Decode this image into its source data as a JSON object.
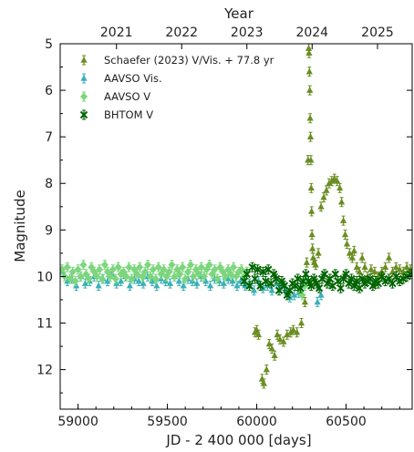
{
  "chart_data": {
    "type": "scatter",
    "xlabel": "JD - 2 400 000 [days]",
    "ylabel": "Magnitude",
    "top_xlabel": "Year",
    "xlim": [
      58900,
      60870
    ],
    "ylim": [
      12.85,
      5.0
    ],
    "y_inverted": true,
    "grid": false,
    "legend_position": "top-left",
    "x_ticks": [
      59000,
      59500,
      60000,
      60500
    ],
    "y_ticks": [
      5,
      6,
      7,
      8,
      9,
      10,
      11,
      12
    ],
    "top_ticks": [
      {
        "label": "2021",
        "x": 59215
      },
      {
        "label": "2022",
        "x": 59580
      },
      {
        "label": "2023",
        "x": 59945
      },
      {
        "label": "2024",
        "x": 60310
      },
      {
        "label": "2025",
        "x": 60676
      }
    ],
    "colors": {
      "schaefer": "#6b8e23",
      "aavso_vis": "#3cb0b8",
      "aavso_v": "#7dd67d",
      "bhtom": "#006400"
    },
    "series": [
      {
        "name": "Schaefer (2023) V/Vis. + 77.8 yr",
        "key": "schaefer",
        "marker": "triangle",
        "points": [
          [
            59990,
            11.2
          ],
          [
            60000,
            11.15
          ],
          [
            60010,
            11.25
          ],
          [
            60030,
            12.2
          ],
          [
            60040,
            12.3
          ],
          [
            60055,
            12.0
          ],
          [
            60070,
            11.45
          ],
          [
            60085,
            11.55
          ],
          [
            60100,
            11.7
          ],
          [
            60115,
            11.25
          ],
          [
            60130,
            11.35
          ],
          [
            60150,
            11.4
          ],
          [
            60170,
            11.25
          ],
          [
            60190,
            11.2
          ],
          [
            60205,
            11.15
          ],
          [
            60225,
            11.2
          ],
          [
            60250,
            11.0
          ],
          [
            60270,
            10.55
          ],
          [
            60280,
            9.7
          ],
          [
            60287,
            7.5
          ],
          [
            60291,
            5.1
          ],
          [
            60293,
            5.2
          ],
          [
            60295,
            5.6
          ],
          [
            60297,
            6.0
          ],
          [
            60299,
            6.6
          ],
          [
            60301,
            7.0
          ],
          [
            60303,
            7.5
          ],
          [
            60305,
            8.1
          ],
          [
            60307,
            8.6
          ],
          [
            60309,
            9.1
          ],
          [
            60312,
            9.4
          ],
          [
            60316,
            9.6
          ],
          [
            60322,
            9.7
          ],
          [
            60330,
            9.75
          ],
          [
            60345,
            9.5
          ],
          [
            60360,
            8.5
          ],
          [
            60375,
            8.3
          ],
          [
            60390,
            8.15
          ],
          [
            60405,
            8.0
          ],
          [
            60420,
            7.95
          ],
          [
            60435,
            7.9
          ],
          [
            60450,
            7.95
          ],
          [
            60465,
            8.1
          ],
          [
            60475,
            8.4
          ],
          [
            60485,
            8.8
          ],
          [
            60495,
            9.1
          ],
          [
            60505,
            9.3
          ],
          [
            60520,
            9.5
          ],
          [
            60535,
            9.6
          ],
          [
            60545,
            9.45
          ],
          [
            60560,
            9.8
          ],
          [
            60575,
            9.9
          ],
          [
            60590,
            9.6
          ],
          [
            60605,
            9.8
          ],
          [
            60620,
            10.0
          ],
          [
            60640,
            9.85
          ],
          [
            60660,
            9.9
          ],
          [
            60680,
            10.0
          ],
          [
            60700,
            9.9
          ],
          [
            60720,
            9.8
          ],
          [
            60740,
            9.6
          ],
          [
            60760,
            9.9
          ],
          [
            60780,
            9.8
          ],
          [
            60800,
            9.85
          ],
          [
            60820,
            9.9
          ],
          [
            60840,
            9.8
          ],
          [
            60860,
            9.85
          ]
        ]
      },
      {
        "name": "AAVSO Vis.",
        "key": "aavso_vis",
        "marker": "triangle",
        "points": [
          [
            58915,
            9.9
          ],
          [
            58940,
            10.1
          ],
          [
            58965,
            10.05
          ],
          [
            58990,
            10.2
          ],
          [
            59015,
            10.0
          ],
          [
            59040,
            10.15
          ],
          [
            59065,
            10.1
          ],
          [
            59090,
            10.0
          ],
          [
            59115,
            10.2
          ],
          [
            59140,
            10.05
          ],
          [
            59165,
            10.1
          ],
          [
            59190,
            9.95
          ],
          [
            59215,
            10.15
          ],
          [
            59240,
            10.1
          ],
          [
            59265,
            10.0
          ],
          [
            59290,
            10.2
          ],
          [
            59315,
            10.05
          ],
          [
            59340,
            10.1
          ],
          [
            59365,
            10.15
          ],
          [
            59390,
            10.0
          ],
          [
            59415,
            10.1
          ],
          [
            59440,
            10.2
          ],
          [
            59465,
            10.05
          ],
          [
            59490,
            10.1
          ],
          [
            59515,
            10.15
          ],
          [
            59540,
            10.0
          ],
          [
            59565,
            10.1
          ],
          [
            59590,
            10.2
          ],
          [
            59615,
            10.05
          ],
          [
            59640,
            10.1
          ],
          [
            59665,
            10.15
          ],
          [
            59690,
            10.0
          ],
          [
            59715,
            10.1
          ],
          [
            59740,
            10.2
          ],
          [
            59765,
            10.05
          ],
          [
            59790,
            10.1
          ],
          [
            59815,
            10.15
          ],
          [
            59840,
            10.05
          ],
          [
            59865,
            10.1
          ],
          [
            59890,
            10.2
          ],
          [
            59910,
            10.1
          ],
          [
            59935,
            10.2
          ],
          [
            59960,
            10.15
          ],
          [
            59985,
            10.3
          ],
          [
            60010,
            10.1
          ],
          [
            60035,
            10.25
          ],
          [
            60060,
            10.2
          ],
          [
            60085,
            10.3
          ],
          [
            60110,
            10.15
          ],
          [
            60135,
            10.2
          ],
          [
            60160,
            10.3
          ],
          [
            60185,
            10.45
          ],
          [
            60210,
            10.4
          ],
          [
            60235,
            10.35
          ],
          [
            60255,
            10.2
          ],
          [
            60270,
            10.1
          ],
          [
            60340,
            10.55
          ],
          [
            60360,
            10.4
          ]
        ]
      },
      {
        "name": "AAVSO V",
        "key": "aavso_v",
        "marker": "diamond",
        "points": [
          [
            58910,
            9.85
          ],
          [
            58925,
            10.0
          ],
          [
            58940,
            9.8
          ],
          [
            58955,
            10.05
          ],
          [
            58970,
            9.9
          ],
          [
            58985,
            10.1
          ],
          [
            59000,
            9.85
          ],
          [
            59015,
            10.0
          ],
          [
            59030,
            9.75
          ],
          [
            59045,
            9.95
          ],
          [
            59060,
            10.05
          ],
          [
            59075,
            9.8
          ],
          [
            59090,
            9.9
          ],
          [
            59105,
            10.0
          ],
          [
            59120,
            9.85
          ],
          [
            59135,
            10.05
          ],
          [
            59150,
            9.75
          ],
          [
            59165,
            9.9
          ],
          [
            59180,
            10.0
          ],
          [
            59195,
            9.85
          ],
          [
            59210,
            10.05
          ],
          [
            59225,
            9.8
          ],
          [
            59240,
            9.95
          ],
          [
            59255,
            9.9
          ],
          [
            59270,
            10.0
          ],
          [
            59285,
            9.8
          ],
          [
            59300,
            10.05
          ],
          [
            59315,
            9.85
          ],
          [
            59330,
            9.95
          ],
          [
            59345,
            9.8
          ],
          [
            59360,
            10.0
          ],
          [
            59375,
            9.9
          ],
          [
            59390,
            9.75
          ],
          [
            59405,
            10.0
          ],
          [
            59420,
            9.85
          ],
          [
            59435,
            10.05
          ],
          [
            59450,
            9.8
          ],
          [
            59465,
            9.95
          ],
          [
            59480,
            9.85
          ],
          [
            59495,
            10.0
          ],
          [
            59510,
            9.9
          ],
          [
            59525,
            9.75
          ],
          [
            59540,
            10.0
          ],
          [
            59555,
            9.85
          ],
          [
            59570,
            9.95
          ],
          [
            59585,
            9.8
          ],
          [
            59600,
            10.05
          ],
          [
            59615,
            9.9
          ],
          [
            59630,
            9.75
          ],
          [
            59645,
            10.0
          ],
          [
            59660,
            9.85
          ],
          [
            59675,
            9.95
          ],
          [
            59690,
            9.8
          ],
          [
            59705,
            10.0
          ],
          [
            59720,
            9.85
          ],
          [
            59735,
            9.75
          ],
          [
            59750,
            9.95
          ],
          [
            59765,
            9.85
          ],
          [
            59780,
            10.05
          ],
          [
            59795,
            9.8
          ],
          [
            59810,
            9.9
          ],
          [
            59825,
            10.0
          ],
          [
            59840,
            9.85
          ],
          [
            59855,
            9.95
          ],
          [
            59870,
            9.8
          ],
          [
            59885,
            10.0
          ],
          [
            59900,
            9.9
          ],
          [
            59915,
            9.85
          ],
          [
            59930,
            10.0
          ],
          [
            59945,
            9.9
          ],
          [
            60240,
            10.3
          ],
          [
            60255,
            10.4
          ],
          [
            60270,
            10.2
          ],
          [
            60285,
            10.1
          ]
        ]
      },
      {
        "name": "BHTOM V",
        "key": "bhtom",
        "marker": "x",
        "points": [
          [
            59930,
            10.1
          ],
          [
            59945,
            9.95
          ],
          [
            59960,
            10.2
          ],
          [
            59975,
            9.8
          ],
          [
            59990,
            10.05
          ],
          [
            60005,
            9.85
          ],
          [
            60020,
            10.2
          ],
          [
            60035,
            9.9
          ],
          [
            60050,
            10.1
          ],
          [
            60065,
            9.85
          ],
          [
            60080,
            10.15
          ],
          [
            60095,
            9.95
          ],
          [
            60110,
            10.05
          ],
          [
            60125,
            10.3
          ],
          [
            60140,
            10.1
          ],
          [
            60155,
            10.2
          ],
          [
            60170,
            10.4
          ],
          [
            60185,
            10.3
          ],
          [
            60200,
            10.15
          ],
          [
            60215,
            10.2
          ],
          [
            60230,
            10.05
          ],
          [
            60245,
            10.25
          ],
          [
            60260,
            10.1
          ],
          [
            60275,
            9.95
          ],
          [
            60290,
            10.1
          ],
          [
            60305,
            10.2
          ],
          [
            60320,
            10.05
          ],
          [
            60335,
            10.15
          ],
          [
            60350,
            10.25
          ],
          [
            60365,
            10.05
          ],
          [
            60380,
            9.95
          ],
          [
            60395,
            10.15
          ],
          [
            60410,
            10.05
          ],
          [
            60425,
            10.2
          ],
          [
            60440,
            9.95
          ],
          [
            60455,
            10.1
          ],
          [
            60470,
            10.25
          ],
          [
            60485,
            10.05
          ],
          [
            60500,
            9.95
          ],
          [
            60515,
            10.15
          ],
          [
            60530,
            10.05
          ],
          [
            60545,
            10.2
          ],
          [
            60560,
            10.1
          ],
          [
            60575,
            10.25
          ],
          [
            60590,
            10.05
          ],
          [
            60605,
            10.15
          ],
          [
            60620,
            10.1
          ],
          [
            60635,
            10.05
          ],
          [
            60650,
            10.2
          ],
          [
            60665,
            10.1
          ],
          [
            60680,
            10.15
          ],
          [
            60700,
            10.0
          ],
          [
            60720,
            10.1
          ],
          [
            60740,
            10.05
          ],
          [
            60760,
            10.15
          ],
          [
            60780,
            10.0
          ],
          [
            60800,
            10.1
          ],
          [
            60820,
            10.05
          ],
          [
            60840,
            10.0
          ],
          [
            60860,
            9.95
          ]
        ]
      }
    ]
  }
}
